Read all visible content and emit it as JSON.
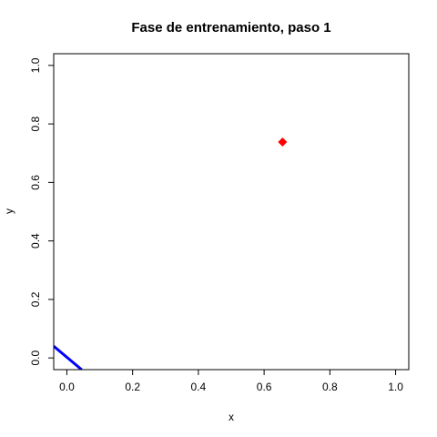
{
  "chart_data": {
    "type": "scatter",
    "title": "Fase de entrenamiento, paso 1",
    "xlabel": "x",
    "ylabel": "y",
    "xlim": [
      -0.04,
      1.04
    ],
    "ylim": [
      -0.04,
      1.04
    ],
    "x_ticks": [
      0.0,
      0.2,
      0.4,
      0.6,
      0.8,
      1.0
    ],
    "x_tick_labels": [
      "0.0",
      "0.2",
      "0.4",
      "0.6",
      "0.8",
      "1.0"
    ],
    "y_ticks": [
      0.0,
      0.2,
      0.4,
      0.6,
      0.8,
      1.0
    ],
    "y_tick_labels": [
      "0.0",
      "0.2",
      "0.4",
      "0.6",
      "0.8",
      "1.0"
    ],
    "points": [
      {
        "x": 0.656,
        "y": 0.738,
        "color": "#ff0000",
        "shape": "diamond"
      }
    ],
    "lines": [
      {
        "x": [
          -0.04,
          0.045
        ],
        "y": [
          0.04,
          -0.04
        ],
        "color": "#0000ff"
      }
    ]
  }
}
